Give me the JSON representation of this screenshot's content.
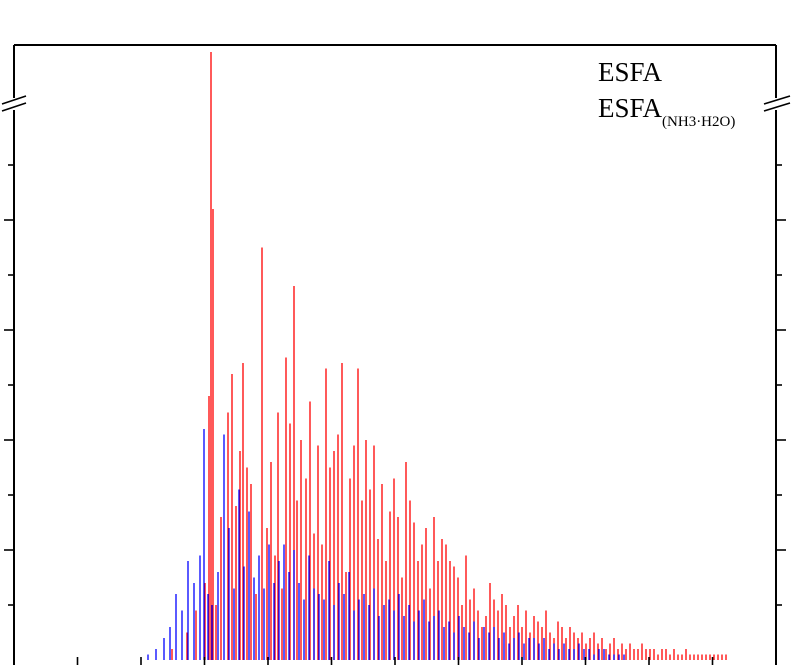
{
  "chart_data": {
    "type": "bar",
    "title": "",
    "xlabel": "",
    "ylabel": "",
    "axis_break": true,
    "grid": false,
    "legend": {
      "placement": "top-right",
      "entries": [
        {
          "label": "ESFA",
          "subscript": ""
        },
        {
          "label": "ESFA",
          "subscript": "(NH3·H2O)"
        }
      ]
    },
    "series": [
      {
        "color": "#ff0000",
        "x": [
          172,
          187,
          196,
          205,
          209,
          213,
          216,
          221,
          228,
          232,
          236,
          240,
          243,
          247,
          251,
          256,
          262,
          267,
          271,
          275,
          278,
          282,
          286,
          290,
          294,
          297,
          301,
          306,
          310,
          314,
          318,
          322,
          326,
          330,
          334,
          338,
          342,
          346,
          350,
          354,
          358,
          362,
          366,
          370,
          374,
          378,
          382,
          386,
          390,
          394,
          398,
          402,
          406,
          410,
          414,
          418,
          422,
          426,
          430,
          434,
          438,
          442,
          446,
          450,
          454,
          458,
          462,
          466,
          470,
          474,
          478,
          482,
          486,
          490,
          494,
          498,
          502,
          506,
          510,
          514,
          518,
          522,
          526,
          530,
          534,
          538,
          542,
          546,
          550,
          554,
          558,
          562,
          566,
          570,
          574,
          578,
          582,
          586,
          590,
          594,
          598,
          602,
          606,
          610,
          614,
          618,
          622,
          626,
          630,
          634,
          638,
          642,
          646,
          650,
          654,
          658,
          662,
          666,
          670,
          674,
          678,
          682,
          686,
          690,
          694,
          698,
          702,
          706,
          710,
          714,
          718,
          722,
          726
        ],
        "values": [
          2,
          5,
          9,
          14,
          48,
          82,
          10,
          26,
          45,
          52,
          28,
          38,
          54,
          35,
          32,
          12,
          75,
          24,
          36,
          19,
          45,
          13,
          55,
          43,
          68,
          29,
          40,
          33,
          47,
          23,
          39,
          21,
          53,
          35,
          38,
          41,
          54,
          16,
          33,
          39,
          53,
          29,
          40,
          31,
          39,
          22,
          32,
          18,
          27,
          33,
          26,
          15,
          36,
          29,
          25,
          18,
          21,
          24,
          13,
          26,
          18,
          22,
          21,
          18,
          17,
          15,
          10,
          19,
          11,
          13,
          9,
          6,
          8,
          14,
          11,
          9,
          12,
          10,
          6,
          8,
          10,
          6,
          9,
          5,
          8,
          7,
          6,
          9,
          5,
          4,
          7,
          6,
          4,
          6,
          5,
          4,
          5,
          3,
          4,
          5,
          3,
          4,
          2,
          3,
          4,
          2,
          3,
          2,
          3,
          2,
          2,
          3,
          2,
          2,
          2,
          1,
          2,
          2,
          1,
          2,
          1,
          1,
          2,
          1,
          1,
          1,
          1,
          1,
          1,
          1,
          1,
          1,
          1
        ]
      },
      {
        "color": "#0000ff",
        "x": [
          148,
          156,
          164,
          170,
          176,
          182,
          188,
          194,
          200,
          204,
          208,
          212,
          218,
          224,
          229,
          234,
          239,
          244,
          249,
          254,
          259,
          264,
          269,
          274,
          279,
          284,
          289,
          294,
          299,
          304,
          309,
          314,
          319,
          324,
          329,
          334,
          339,
          344,
          349,
          354,
          359,
          364,
          369,
          374,
          379,
          384,
          389,
          394,
          399,
          404,
          409,
          414,
          419,
          424,
          429,
          434,
          439,
          444,
          449,
          454,
          459,
          464,
          469,
          474,
          479,
          484,
          489,
          494,
          499,
          504,
          509,
          514,
          519,
          524,
          529,
          534,
          539,
          544,
          549,
          554,
          559,
          564,
          569,
          574,
          579,
          584,
          589,
          594,
          599,
          604,
          609,
          614,
          619,
          624
        ],
        "values": [
          1,
          2,
          4,
          6,
          12,
          9,
          18,
          14,
          19,
          42,
          12,
          10,
          16,
          41,
          24,
          13,
          31,
          17,
          27,
          15,
          19,
          13,
          21,
          14,
          18,
          21,
          16,
          20,
          14,
          11,
          19,
          13,
          12,
          11,
          18,
          10,
          14,
          12,
          16,
          9,
          11,
          12,
          10,
          13,
          8,
          10,
          11,
          9,
          12,
          8,
          10,
          7,
          9,
          11,
          7,
          8,
          9,
          6,
          7,
          5,
          8,
          6,
          5,
          7,
          4,
          6,
          5,
          6,
          4,
          5,
          3,
          4,
          5,
          3,
          4,
          4,
          3,
          4,
          2,
          3,
          2,
          3,
          2,
          2,
          3,
          2,
          2,
          1,
          2,
          2,
          1,
          1,
          1,
          1
        ]
      }
    ]
  }
}
